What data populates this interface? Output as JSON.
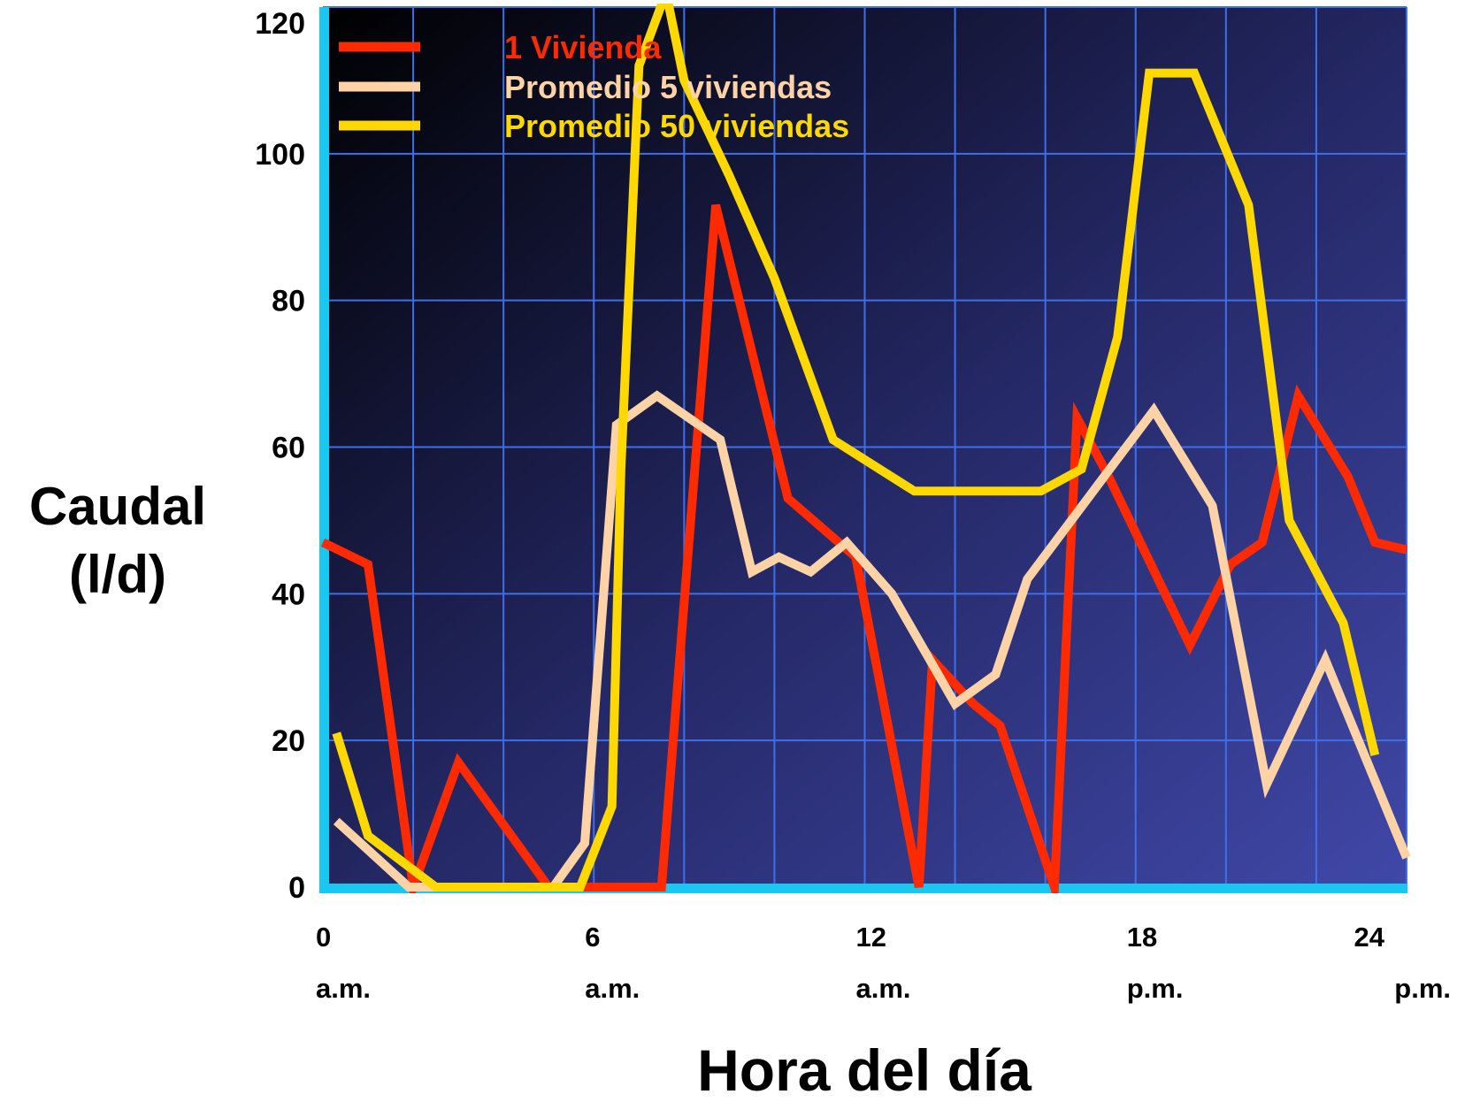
{
  "chart_data": {
    "type": "line",
    "title": "",
    "xlabel": "Hora del día",
    "ylabel_lines": [
      "Caudal",
      "(l/d)"
    ],
    "xlim": [
      0,
      24
    ],
    "ylim": [
      0,
      120
    ],
    "grid": true,
    "legend_position": "top-left",
    "y_ticks": [
      "0",
      "20",
      "40",
      "60",
      "80",
      "100",
      "120"
    ],
    "x_ticks": [
      {
        "hour": 0,
        "value": "0",
        "period": "a.m."
      },
      {
        "hour": 6,
        "value": "6",
        "period": "a.m."
      },
      {
        "hour": 12,
        "value": "12",
        "period": "a.m."
      },
      {
        "hour": 18,
        "value": "18",
        "period": "p.m."
      },
      {
        "hour": 24,
        "value": "24",
        "period": "p.m."
      }
    ],
    "series": [
      {
        "name": "1 Vivienda",
        "color": "#ff2a00",
        "points": [
          [
            0,
            47
          ],
          [
            1,
            44
          ],
          [
            2,
            0
          ],
          [
            3,
            17
          ],
          [
            5,
            0
          ],
          [
            7.5,
            0
          ],
          [
            8.7,
            93
          ],
          [
            10.3,
            53
          ],
          [
            11.8,
            45
          ],
          [
            13.2,
            0
          ],
          [
            13.5,
            31
          ],
          [
            14.4,
            25
          ],
          [
            15,
            22
          ],
          [
            16.2,
            0
          ],
          [
            16.7,
            64
          ],
          [
            17.4,
            56
          ],
          [
            19.2,
            33
          ],
          [
            20.1,
            44
          ],
          [
            20.8,
            47
          ],
          [
            21.6,
            67
          ],
          [
            22.7,
            56
          ],
          [
            23.3,
            47
          ],
          [
            24,
            46
          ]
        ]
      },
      {
        "name": "Promedio 5 viviendas",
        "color": "#ffd3a6",
        "points": [
          [
            0.3,
            9
          ],
          [
            1.9,
            0
          ],
          [
            5.1,
            0
          ],
          [
            5.8,
            6
          ],
          [
            6.5,
            63
          ],
          [
            7.4,
            67
          ],
          [
            8.8,
            61
          ],
          [
            9.5,
            43
          ],
          [
            10.1,
            45
          ],
          [
            10.8,
            43
          ],
          [
            11.6,
            47
          ],
          [
            12.6,
            40
          ],
          [
            14,
            25
          ],
          [
            14.9,
            29
          ],
          [
            15.6,
            42
          ],
          [
            18.4,
            65
          ],
          [
            19.7,
            52
          ],
          [
            20.9,
            14
          ],
          [
            22.2,
            31
          ],
          [
            24,
            4
          ]
        ]
      },
      {
        "name": "Promedio 50 viviendas",
        "color": "#ffd800",
        "points": [
          [
            0.3,
            21
          ],
          [
            1,
            7
          ],
          [
            2.5,
            0
          ],
          [
            5.7,
            0
          ],
          [
            6.4,
            11
          ],
          [
            6.6,
            57
          ],
          [
            7,
            112
          ],
          [
            7.6,
            122
          ],
          [
            8,
            110
          ],
          [
            9,
            97
          ],
          [
            10,
            83
          ],
          [
            11.3,
            61
          ],
          [
            13.1,
            54
          ],
          [
            15.9,
            54
          ],
          [
            16.8,
            57
          ],
          [
            17.6,
            75
          ],
          [
            18.3,
            111
          ],
          [
            19.3,
            111
          ],
          [
            20.5,
            93
          ],
          [
            21.4,
            50
          ],
          [
            22.6,
            36
          ],
          [
            23.3,
            18
          ]
        ]
      }
    ]
  }
}
